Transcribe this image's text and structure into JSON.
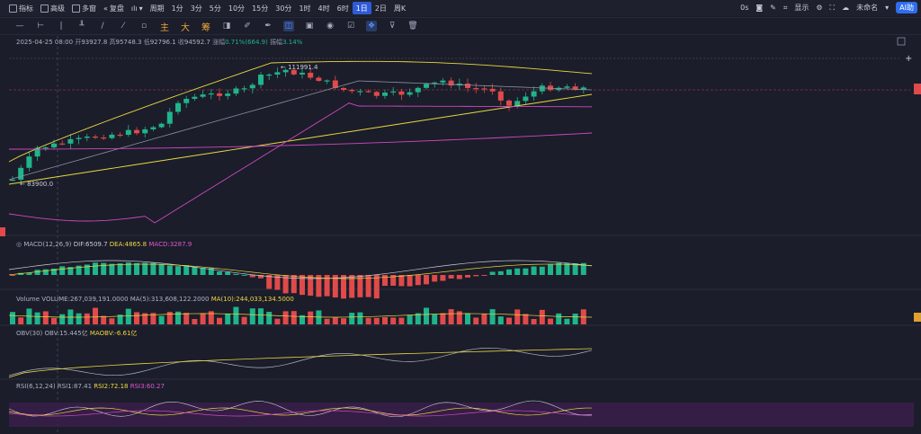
{
  "toolbar_top": {
    "items": [
      {
        "icon": "indicator-icon",
        "label": "指标"
      },
      {
        "icon": "advanced-icon",
        "label": "高级"
      },
      {
        "icon": "multi-chart-icon",
        "label": "多窗"
      },
      {
        "icon": "replay-icon",
        "label": "复盘"
      },
      {
        "icon": "chart-type-icon",
        "label": "ılı"
      },
      {
        "icon": "",
        "label": "周期"
      },
      {
        "icon": "",
        "label": "1分"
      },
      {
        "icon": "",
        "label": "3分"
      },
      {
        "icon": "",
        "label": "5分"
      },
      {
        "icon": "",
        "label": "10分"
      },
      {
        "icon": "",
        "label": "15分"
      },
      {
        "icon": "",
        "label": "30分"
      },
      {
        "icon": "",
        "label": "1时"
      },
      {
        "icon": "",
        "label": "4时"
      },
      {
        "icon": "",
        "label": "6时"
      },
      {
        "icon": "",
        "label": "1日",
        "active": true
      },
      {
        "icon": "",
        "label": "2日"
      },
      {
        "icon": "",
        "label": "周K"
      }
    ],
    "right": {
      "timer": "0s",
      "display_label": "显示",
      "cloud_label": "未命名",
      "ai_label": "AI助"
    }
  },
  "drawing_tools": {
    "zh_labels": [
      "主",
      "大",
      "筹"
    ]
  },
  "ohlc": {
    "date": "2025-04-25 08:00",
    "open_label": "开",
    "open": "93927.8",
    "high_label": "高",
    "high": "95748.3",
    "low_label": "低",
    "low": "92796.1",
    "close_label": "收",
    "close": "94592.7",
    "change_label": "涨幅",
    "change": "0.71%(664.9)",
    "amp_label": "振幅",
    "amp": "3.14%"
  },
  "price_labels": {
    "high_mark": "111991.4",
    "low_mark": "83900.0"
  },
  "macd": {
    "name": "MACD(12,26,9)",
    "dif_label": "DIF:",
    "dif": "6509.7",
    "dea_label": "DEA:",
    "dea": "4865.8",
    "macd_label": "MACD:",
    "macd": "3287.9"
  },
  "volume": {
    "name": "Volume",
    "vol_label": "VOLUME:",
    "vol": "267,039,191.0000",
    "ma5_label": "MA(5):",
    "ma5": "313,608,122.2000",
    "ma10_label": "MA(10):",
    "ma10": "244,033,134.5000"
  },
  "obv": {
    "name": "OBV(30)",
    "obv_label": "OBV:",
    "obv": "15.445亿",
    "maobv_label": "MAOBV:",
    "maobv": "-6.61亿"
  },
  "rsi": {
    "name": "RSI(6,12,24)",
    "rsi1_label": "RSI1:",
    "rsi1": "87.41",
    "rsi2_label": "RSI2:",
    "rsi2": "72.18",
    "rsi3_label": "RSI3:",
    "rsi3": "60.27"
  },
  "colors": {
    "up": "#20b48a",
    "down": "#e04a4a",
    "ma_yellow": "#e8d840",
    "ma_pink": "#d048c0",
    "ma_gray": "#8a8fa0",
    "bg": "#1b1d2a"
  }
}
